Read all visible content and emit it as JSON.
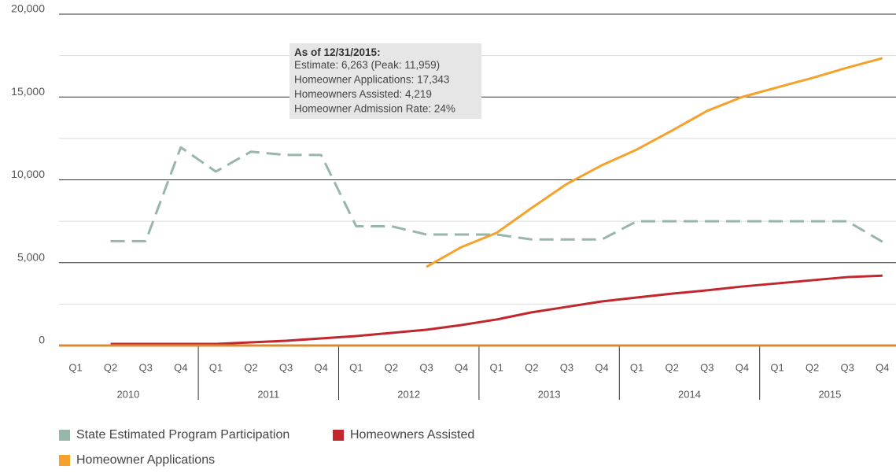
{
  "chart_data": {
    "type": "line",
    "categories": [
      "Q1",
      "Q2",
      "Q3",
      "Q4",
      "Q1",
      "Q2",
      "Q3",
      "Q4",
      "Q1",
      "Q2",
      "Q3",
      "Q4",
      "Q1",
      "Q2",
      "Q3",
      "Q4",
      "Q1",
      "Q2",
      "Q3",
      "Q4",
      "Q1",
      "Q2",
      "Q3",
      "Q4"
    ],
    "years": [
      "2010",
      "2011",
      "2012",
      "2013",
      "2014",
      "2015"
    ],
    "ylim": [
      0,
      20000
    ],
    "yticks": [
      0,
      {
        "value": 5000,
        "label": "5,000"
      },
      {
        "value": 10000,
        "label": "10,000"
      },
      {
        "value": 15000,
        "label": "15,000"
      },
      {
        "value": 20000,
        "label": "20,000"
      }
    ],
    "grid": true,
    "series": [
      {
        "name": "State Estimated Program Participation",
        "color": "#98b6a9",
        "dashed": true,
        "values": [
          null,
          6300,
          6300,
          11959,
          10500,
          11700,
          11500,
          11500,
          7200,
          7200,
          6700,
          6700,
          6700,
          6400,
          6400,
          6400,
          7500,
          7500,
          7500,
          7500,
          7500,
          7500,
          7500,
          6263
        ]
      },
      {
        "name": "Homeowners Assisted",
        "color": "#c1272d",
        "dashed": false,
        "values": [
          null,
          95,
          95,
          95,
          95,
          190,
          285,
          430,
          570,
          760,
          950,
          1235,
          1570,
          2000,
          2330,
          2660,
          2900,
          3130,
          3330,
          3560,
          3750,
          3940,
          4130,
          4219
        ]
      },
      {
        "name": "Homeowner Applications",
        "color": "#f5a22d",
        "dashed": false,
        "values": [
          null,
          null,
          null,
          null,
          null,
          null,
          null,
          null,
          null,
          null,
          4750,
          5940,
          6800,
          8300,
          9750,
          10880,
          11830,
          12970,
          14160,
          15000,
          15580,
          16150,
          16770,
          17343
        ]
      }
    ],
    "annotation": {
      "title": "As of 12/31/2015:",
      "lines": [
        "Estimate: 6,263 (Peak: 11,959)",
        "Homeowner Applications: 17,343",
        "Homeowners Assisted: 4,219",
        "Homeowner Admission Rate: 24%"
      ]
    }
  }
}
